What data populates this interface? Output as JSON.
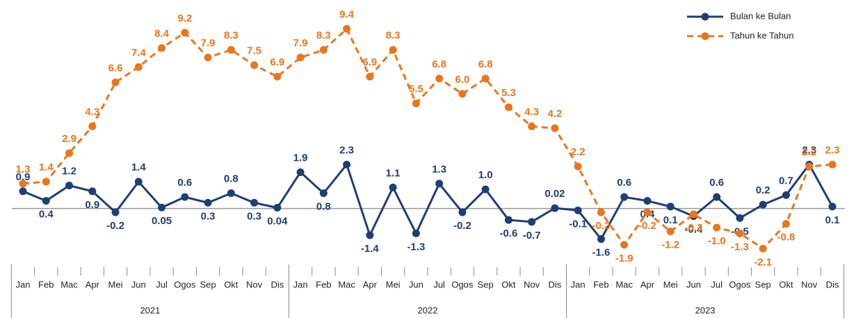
{
  "chart_data": {
    "type": "line",
    "categories": [
      "Jan",
      "Feb",
      "Mac",
      "Apr",
      "Mei",
      "Jun",
      "Jul",
      "Ogos",
      "Sep",
      "Okt",
      "Nov",
      "Dis",
      "Jan",
      "Feb",
      "Mac",
      "Apr",
      "Mei",
      "Jun",
      "Jul",
      "Ogos",
      "Sep",
      "Okt",
      "Nov",
      "Dis",
      "Jan",
      "Feb",
      "Mac",
      "Apr",
      "Mei",
      "Jun",
      "Jul",
      "Ogos",
      "Sep",
      "Okt",
      "Nov",
      "Dis"
    ],
    "groups": [
      "2021",
      "2022",
      "2023"
    ],
    "series": [
      {
        "name": "Bulan ke Bulan",
        "color": "#1f3e74",
        "dash": false,
        "values": [
          0.9,
          0.4,
          1.2,
          0.9,
          -0.2,
          1.4,
          0.05,
          0.6,
          0.3,
          0.8,
          0.3,
          0.04,
          1.9,
          0.8,
          2.3,
          -1.4,
          1.1,
          -1.3,
          1.3,
          -0.2,
          1.0,
          -0.6,
          -0.7,
          0.02,
          -0.1,
          -1.6,
          0.6,
          0.4,
          0.1,
          -0.4,
          0.6,
          -0.5,
          0.2,
          0.7,
          2.3,
          0.1
        ],
        "value_labels": [
          "0.9",
          "0.4",
          "1.2",
          "0.9",
          "-0.2",
          "1.4",
          "0.05",
          "0.6",
          "0.3",
          "0.8",
          "0.3",
          "0.04",
          "1.9",
          "0.8",
          "2.3",
          "-1.4",
          "1.1",
          "-1.3",
          "1.3",
          "-0.2",
          "1.0",
          "-0.6",
          "-0.7",
          "0.02",
          "-0.1",
          "-1.6",
          "0.6",
          "0.4",
          "0.1",
          "-0.4",
          "0.6",
          "-0.5",
          "0.2",
          "0.7",
          "2.3",
          "0.1"
        ]
      },
      {
        "name": "Tahun ke Tahun",
        "color": "#e8761e",
        "dash": true,
        "values": [
          1.3,
          1.4,
          2.9,
          4.3,
          6.6,
          7.4,
          8.4,
          9.2,
          7.9,
          8.3,
          7.5,
          6.9,
          7.9,
          8.3,
          9.4,
          6.9,
          8.3,
          5.5,
          6.8,
          6.0,
          6.8,
          5.3,
          4.3,
          4.2,
          2.2,
          -0.2,
          -1.9,
          -0.2,
          -1.2,
          -0.3,
          -1.0,
          -1.3,
          -2.1,
          -0.8,
          2.2,
          2.3
        ],
        "value_labels": [
          "1.3",
          "1.4",
          "2.9",
          "4.3",
          "6.6",
          "7.4",
          "8.4",
          "9.2",
          "7.9",
          "8.3",
          "7.5",
          "6.9",
          "7.9",
          "8.3",
          "9.4",
          "6.9",
          "8.3",
          "5.5",
          "6.8",
          "6.0",
          "6.8",
          "5.3",
          "4.3",
          "4.2",
          "2.2",
          "-0.2",
          "-1.9",
          "-0.2",
          "-1.2",
          "-0.3",
          "-1.0",
          "-1.3",
          "-2.1",
          "-0.8",
          "2.2",
          "2.3"
        ]
      }
    ],
    "ylim": [
      -3,
      10
    ],
    "legend": "upper right",
    "grid": false
  }
}
